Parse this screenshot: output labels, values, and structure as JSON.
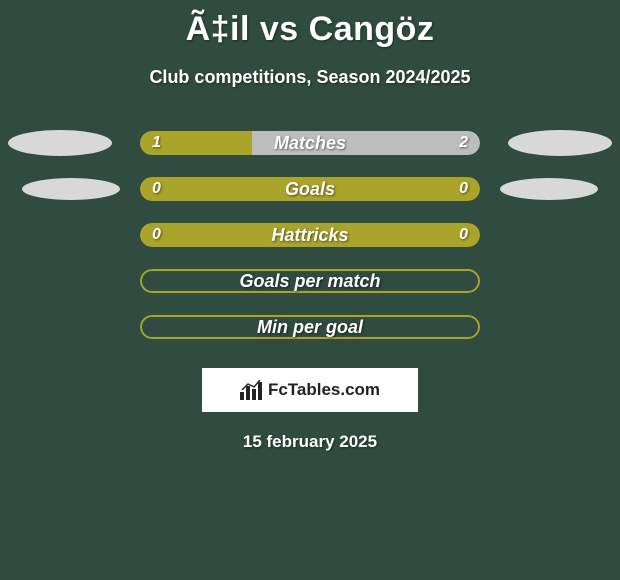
{
  "title": "Ã‡il vs Cangöz",
  "subtitle": "Club competitions, Season 2024/2025",
  "date": "15 february 2025",
  "logo": {
    "text": "FcTables.com"
  },
  "colors": {
    "background": "#304b3f",
    "bar_olive": "#aaa42a",
    "bar_gray": "#bdbdbd",
    "ellipse": "#d8d8d8",
    "text": "#ffffff"
  },
  "rows": [
    {
      "label": "Matches",
      "left_val": "1",
      "right_val": "2",
      "show_ellipses": true,
      "ellipse_size": "large",
      "style": "split",
      "left_pct": 33,
      "left_color": "#aaa42a",
      "right_color": "#bdbdbd"
    },
    {
      "label": "Goals",
      "left_val": "0",
      "right_val": "0",
      "show_ellipses": true,
      "ellipse_size": "small",
      "style": "solid",
      "bg_color": "#aaa42a"
    },
    {
      "label": "Hattricks",
      "left_val": "0",
      "right_val": "0",
      "show_ellipses": false,
      "style": "solid",
      "bg_color": "#aaa42a"
    },
    {
      "label": "Goals per match",
      "left_val": "",
      "right_val": "",
      "show_ellipses": false,
      "style": "outlined"
    },
    {
      "label": "Min per goal",
      "left_val": "",
      "right_val": "",
      "show_ellipses": false,
      "style": "outlined"
    }
  ]
}
